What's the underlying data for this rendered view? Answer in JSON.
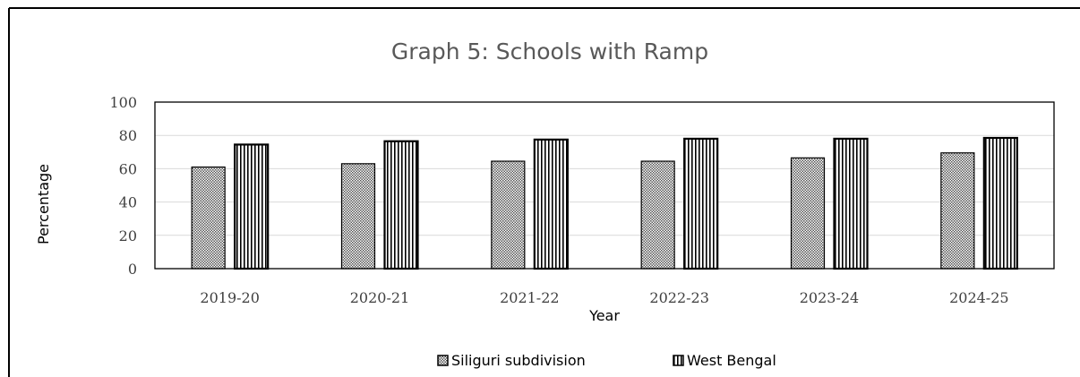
{
  "chart_data": {
    "type": "bar",
    "title": "Graph 5: Schools with Ramp",
    "xlabel": "Year",
    "ylabel": "Percentage",
    "categories": [
      "2019-20",
      "2020-21",
      "2021-22",
      "2022-23",
      "2023-24",
      "2024-25"
    ],
    "series": [
      {
        "name": "Siliguri subdivision",
        "values": [
          61,
          63,
          64.5,
          64.5,
          66.5,
          69.5
        ],
        "pattern": "dots"
      },
      {
        "name": "West Bengal",
        "values": [
          74.5,
          76.5,
          77.5,
          78,
          78,
          78.5
        ],
        "pattern": "vertical-lines"
      }
    ],
    "ylim": [
      0,
      100
    ],
    "yticks": [
      0,
      20,
      40,
      60,
      80,
      100
    ],
    "grid": true,
    "legend": "bottom-center",
    "colors": {
      "bar_stroke": "#000000",
      "grid": "#d9d9d9",
      "title": "#595959",
      "tick": "#404040"
    }
  }
}
